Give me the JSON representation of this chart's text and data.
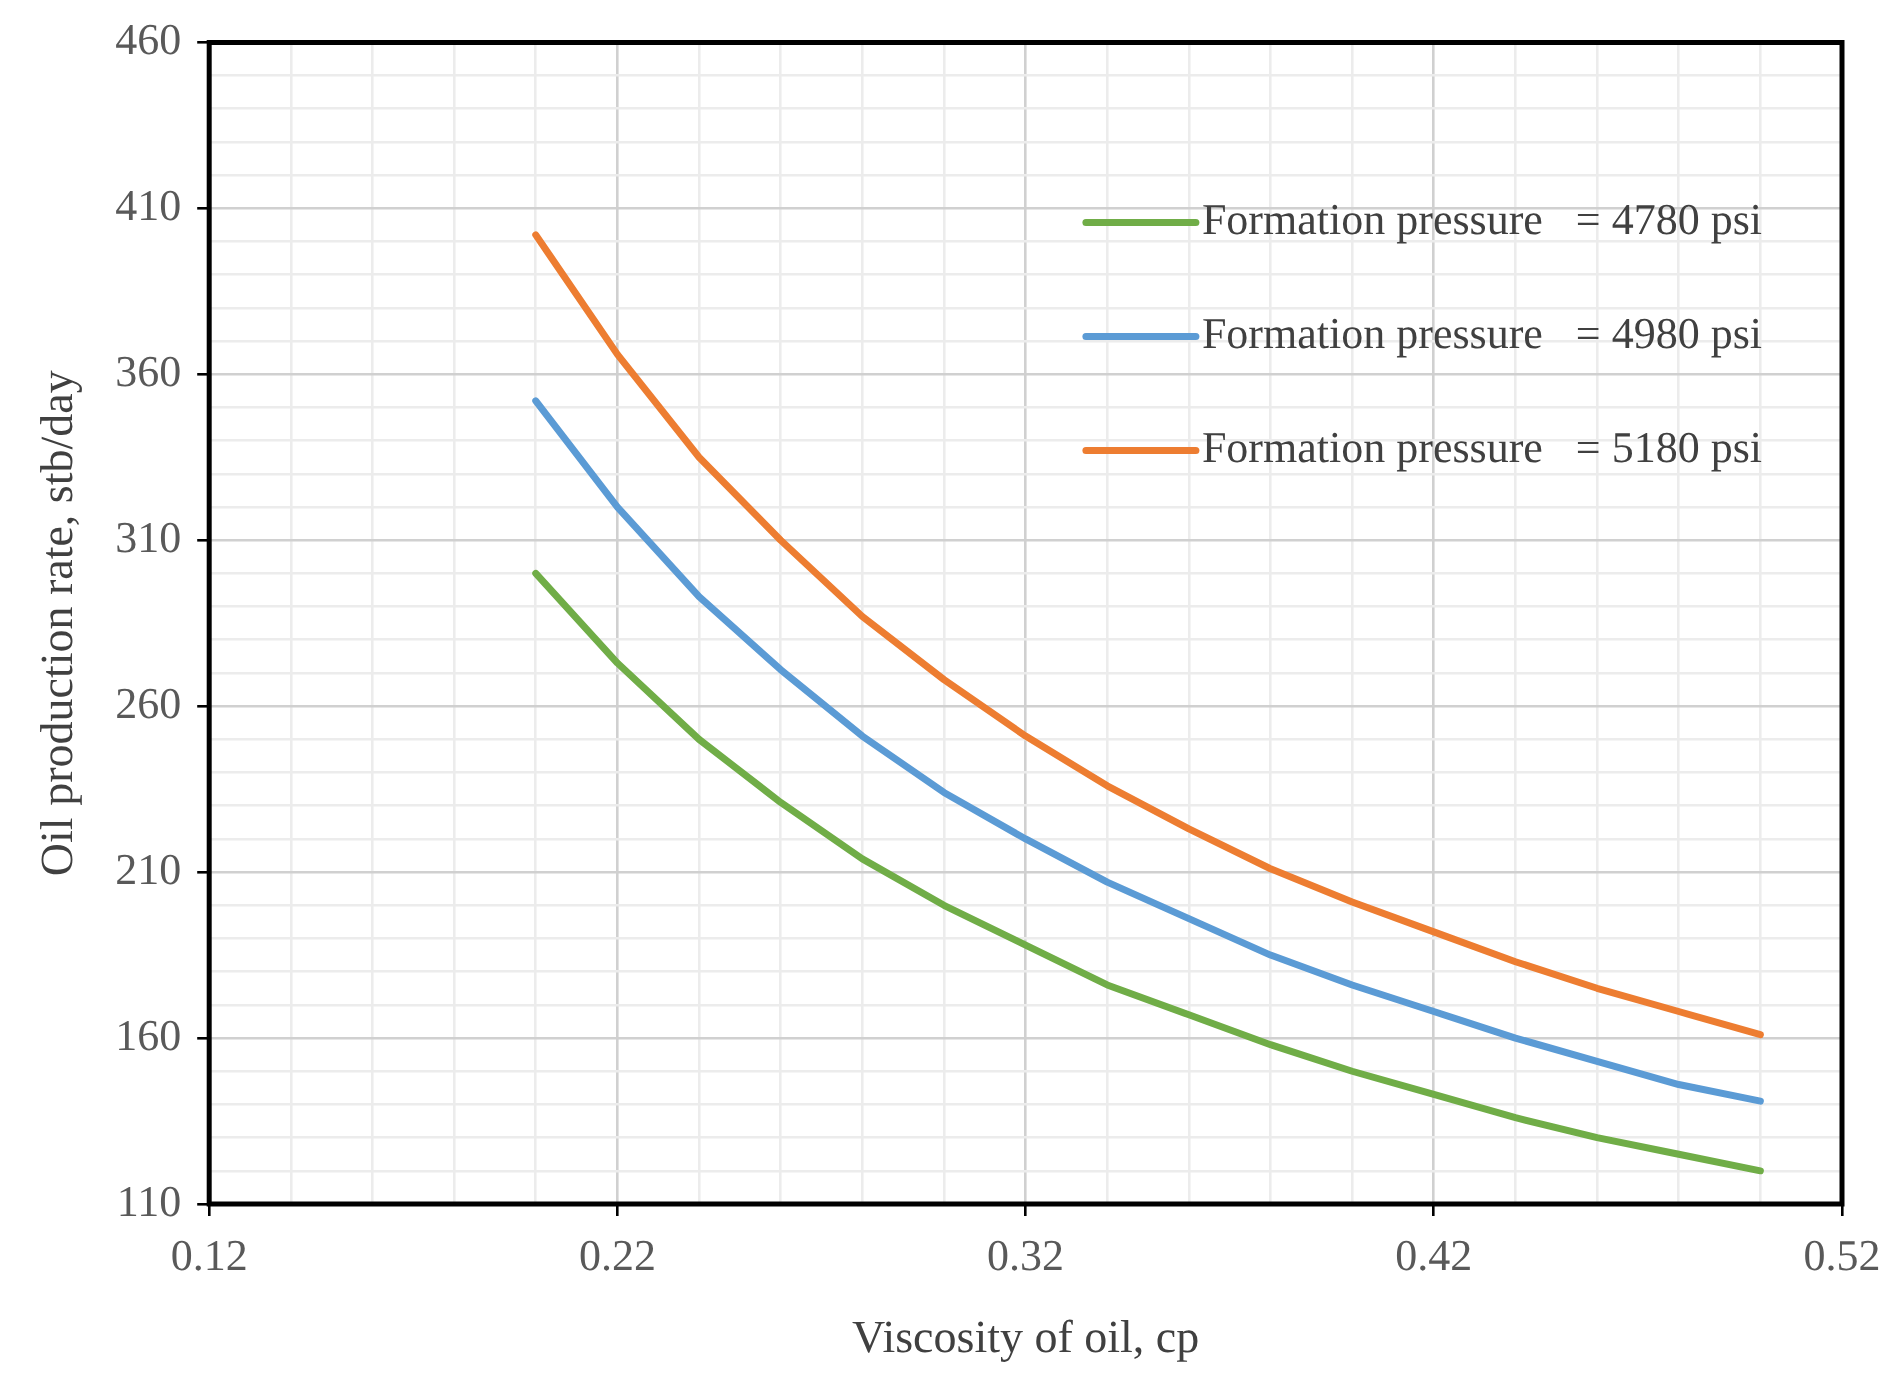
{
  "chart_data": {
    "type": "line",
    "xlabel": "Viscosity of oil, cp",
    "ylabel": "Oil production rate, stb/day",
    "x": [
      0.2,
      0.22,
      0.24,
      0.26,
      0.28,
      0.3,
      0.32,
      0.34,
      0.36,
      0.38,
      0.4,
      0.42,
      0.44,
      0.46,
      0.48,
      0.5
    ],
    "series": [
      {
        "name": "Formation pressure   = 4780 psi",
        "color": "#70ad47",
        "values": [
          300,
          273,
          250,
          231,
          214,
          200,
          188,
          176,
          167,
          158,
          150,
          143,
          136,
          130,
          125,
          120
        ]
      },
      {
        "name": "Formation pressure   = 4980 psi",
        "color": "#5b9bd5",
        "values": [
          352,
          320,
          293,
          271,
          251,
          234,
          220,
          207,
          196,
          185,
          176,
          168,
          160,
          153,
          146,
          141
        ]
      },
      {
        "name": "Formation pressure   = 5180 psi",
        "color": "#ed7d31",
        "values": [
          402,
          366,
          335,
          310,
          287,
          268,
          251,
          236,
          223,
          211,
          201,
          192,
          183,
          175,
          168,
          161
        ]
      }
    ],
    "xlim": [
      0.12,
      0.52
    ],
    "xticks": [
      0.12,
      {
        "value": 0.14,
        "label": null
      },
      {
        "value": 0.16,
        "label": null
      },
      {
        "value": 0.18,
        "label": null
      },
      {
        "value": 0.2,
        "label": null
      },
      0.22,
      {
        "value": 0.24,
        "label": null
      },
      {
        "value": 0.26,
        "label": null
      },
      {
        "value": 0.28,
        "label": null
      },
      {
        "value": 0.3,
        "label": null
      },
      0.32,
      {
        "value": 0.34,
        "label": null
      },
      {
        "value": 0.36,
        "label": null
      },
      {
        "value": 0.38,
        "label": null
      },
      {
        "value": 0.4,
        "label": null
      },
      0.42,
      {
        "value": 0.44,
        "label": null
      },
      {
        "value": 0.46,
        "label": null
      },
      {
        "value": 0.48,
        "label": null
      },
      {
        "value": 0.5,
        "label": null
      },
      0.52
    ],
    "ylim": [
      110,
      460
    ],
    "yticks": [
      110,
      {
        "value": 120,
        "label": null
      },
      {
        "value": 130,
        "label": null
      },
      {
        "value": 140,
        "label": null
      },
      {
        "value": 150,
        "label": null
      },
      160,
      {
        "value": 170,
        "label": null
      },
      {
        "value": 180,
        "label": null
      },
      {
        "value": 190,
        "label": null
      },
      {
        "value": 200,
        "label": null
      },
      210,
      {
        "value": 220,
        "label": null
      },
      {
        "value": 230,
        "label": null
      },
      {
        "value": 240,
        "label": null
      },
      {
        "value": 250,
        "label": null
      },
      260,
      {
        "value": 270,
        "label": null
      },
      {
        "value": 280,
        "label": null
      },
      {
        "value": 290,
        "label": null
      },
      {
        "value": 300,
        "label": null
      },
      310,
      {
        "value": 320,
        "label": null
      },
      {
        "value": 330,
        "label": null
      },
      {
        "value": 340,
        "label": null
      },
      {
        "value": 350,
        "label": null
      },
      360,
      {
        "value": 370,
        "label": null
      },
      {
        "value": 380,
        "label": null
      },
      {
        "value": 390,
        "label": null
      },
      {
        "value": 400,
        "label": null
      },
      410,
      {
        "value": 420,
        "label": null
      },
      {
        "value": 430,
        "label": null
      },
      {
        "value": 440,
        "label": null
      },
      {
        "value": 450,
        "label": null
      },
      460
    ],
    "grid": true,
    "legend": "top right",
    "marker": "none",
    "line_style": "solid"
  }
}
